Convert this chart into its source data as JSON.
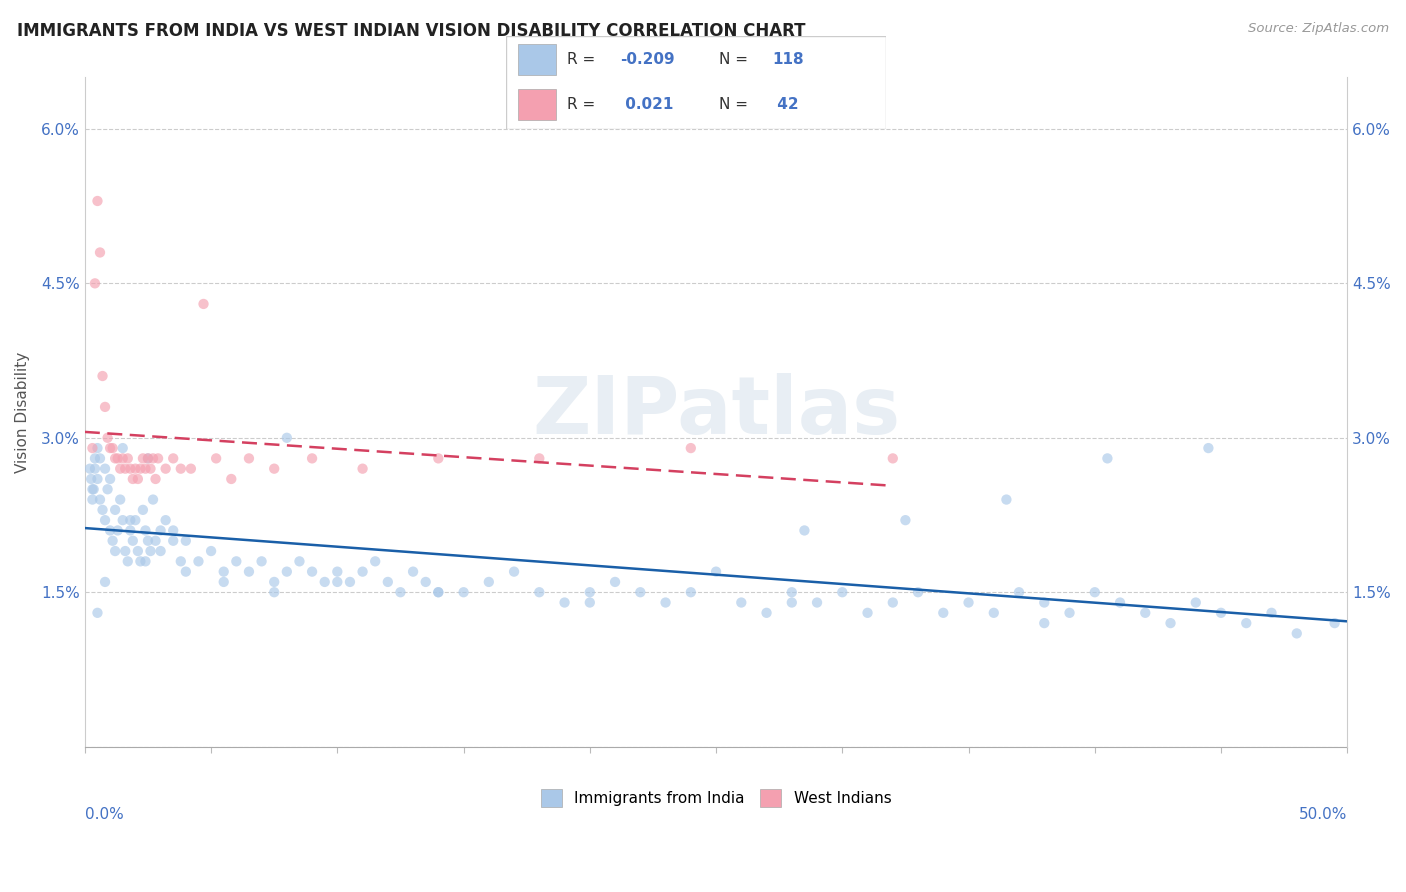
{
  "title": "IMMIGRANTS FROM INDIA VS WEST INDIAN VISION DISABILITY CORRELATION CHART",
  "source": "Source: ZipAtlas.com",
  "ylabel": "Vision Disability",
  "xmin": 0.0,
  "xmax": 50.0,
  "ymin": 0.0,
  "ymax": 6.5,
  "yticks": [
    0.0,
    1.5,
    3.0,
    4.5,
    6.0
  ],
  "ytick_labels": [
    "",
    "1.5%",
    "3.0%",
    "4.5%",
    "6.0%"
  ],
  "blue_scatter_color": "#aac8e8",
  "pink_scatter_color": "#f4a0b0",
  "blue_line_color": "#1a5fa8",
  "pink_line_color": "#d44060",
  "watermark_color": "#e8eef4",
  "legend_entries": [
    {
      "label": "Immigrants from India",
      "color": "#aac8e8",
      "R": "-0.209",
      "N": "118"
    },
    {
      "label": "West Indians",
      "color": "#f4a0b0",
      "R": "0.021",
      "N": "42"
    }
  ],
  "india_x": [
    0.2,
    0.3,
    0.4,
    0.5,
    0.6,
    0.7,
    0.8,
    0.9,
    1.0,
    1.1,
    1.2,
    1.3,
    1.4,
    1.5,
    1.6,
    1.7,
    1.8,
    1.9,
    2.0,
    2.1,
    2.2,
    2.3,
    2.4,
    2.5,
    2.6,
    2.7,
    2.8,
    3.0,
    3.2,
    3.5,
    3.8,
    4.0,
    4.5,
    5.0,
    5.5,
    6.0,
    6.5,
    7.0,
    7.5,
    8.0,
    8.5,
    9.0,
    9.5,
    10.0,
    10.5,
    11.0,
    11.5,
    12.0,
    12.5,
    13.0,
    13.5,
    14.0,
    15.0,
    16.0,
    17.0,
    18.0,
    19.0,
    20.0,
    21.0,
    22.0,
    23.0,
    24.0,
    25.0,
    26.0,
    27.0,
    28.0,
    29.0,
    30.0,
    31.0,
    32.0,
    33.0,
    34.0,
    35.0,
    36.0,
    37.0,
    38.0,
    39.0,
    40.0,
    41.0,
    42.0,
    43.0,
    44.0,
    45.0,
    46.0,
    47.0,
    48.0,
    49.5,
    44.5,
    40.5,
    36.5,
    32.5,
    28.5,
    8.0,
    3.5,
    2.5,
    1.5,
    1.0,
    0.8,
    0.6,
    0.5,
    0.4,
    0.35,
    0.3,
    0.25,
    0.5,
    0.8,
    1.2,
    1.8,
    2.4,
    3.0,
    4.0,
    5.5,
    7.5,
    10.0,
    14.0,
    20.0,
    28.0,
    38.0
  ],
  "india_y": [
    2.7,
    2.5,
    2.8,
    2.6,
    2.4,
    2.3,
    2.2,
    2.5,
    2.1,
    2.0,
    2.3,
    2.1,
    2.4,
    2.2,
    1.9,
    1.8,
    2.1,
    2.0,
    2.2,
    1.9,
    1.8,
    2.3,
    2.1,
    2.0,
    1.9,
    2.4,
    2.0,
    1.9,
    2.2,
    2.1,
    1.8,
    2.0,
    1.8,
    1.9,
    1.7,
    1.8,
    1.7,
    1.8,
    1.6,
    1.7,
    1.8,
    1.7,
    1.6,
    1.7,
    1.6,
    1.7,
    1.8,
    1.6,
    1.5,
    1.7,
    1.6,
    1.5,
    1.5,
    1.6,
    1.7,
    1.5,
    1.4,
    1.5,
    1.6,
    1.5,
    1.4,
    1.5,
    1.7,
    1.4,
    1.3,
    1.5,
    1.4,
    1.5,
    1.3,
    1.4,
    1.5,
    1.3,
    1.4,
    1.3,
    1.5,
    1.4,
    1.3,
    1.5,
    1.4,
    1.3,
    1.2,
    1.4,
    1.3,
    1.2,
    1.3,
    1.1,
    1.2,
    2.9,
    2.8,
    2.4,
    2.2,
    2.1,
    3.0,
    2.0,
    2.8,
    2.9,
    2.6,
    2.7,
    2.8,
    2.9,
    2.7,
    2.5,
    2.4,
    2.6,
    1.3,
    1.6,
    1.9,
    2.2,
    1.8,
    2.1,
    1.7,
    1.6,
    1.5,
    1.6,
    1.5,
    1.4,
    1.4,
    1.2
  ],
  "west_x": [
    0.3,
    0.4,
    0.5,
    0.6,
    0.7,
    0.8,
    0.9,
    1.0,
    1.1,
    1.2,
    1.3,
    1.4,
    1.5,
    1.6,
    1.7,
    1.8,
    1.9,
    2.0,
    2.1,
    2.2,
    2.3,
    2.4,
    2.5,
    2.6,
    2.7,
    2.8,
    2.9,
    3.2,
    3.5,
    3.8,
    4.2,
    4.7,
    5.2,
    5.8,
    6.5,
    7.5,
    9.0,
    11.0,
    14.0,
    18.0,
    24.0,
    32.0
  ],
  "west_y": [
    2.9,
    4.5,
    5.3,
    4.8,
    3.6,
    3.3,
    3.0,
    2.9,
    2.9,
    2.8,
    2.8,
    2.7,
    2.8,
    2.7,
    2.8,
    2.7,
    2.6,
    2.7,
    2.6,
    2.7,
    2.8,
    2.7,
    2.8,
    2.7,
    2.8,
    2.6,
    2.8,
    2.7,
    2.8,
    2.7,
    2.7,
    4.3,
    2.8,
    2.6,
    2.8,
    2.7,
    2.8,
    2.7,
    2.8,
    2.8,
    2.9,
    2.8
  ]
}
